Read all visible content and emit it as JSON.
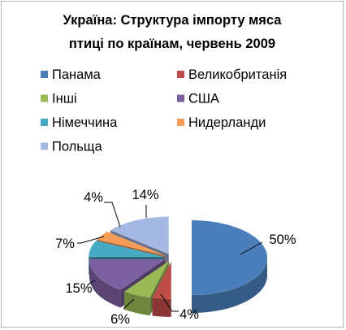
{
  "chart_data": {
    "type": "pie",
    "title_lines": [
      "Україна:  Структура імпорту мяса",
      "птиці по країнам, червень 2009"
    ],
    "categories": [
      "Панама",
      "Великобританія",
      "Інші",
      "США",
      "Німеччина",
      "Нидерланди",
      "Польща"
    ],
    "values": [
      50,
      4,
      6,
      15,
      7,
      4,
      14
    ],
    "labels": [
      "50%",
      "4%",
      "6%",
      "15%",
      "7%",
      "4%",
      "14%"
    ],
    "colors": [
      "#4a7ebb",
      "#be4b48",
      "#98b954",
      "#7d60a0",
      "#46aac5",
      "#f59d56",
      "#a5b8e3"
    ],
    "legend_placement": "top",
    "style": "3d-exploded-pie"
  }
}
